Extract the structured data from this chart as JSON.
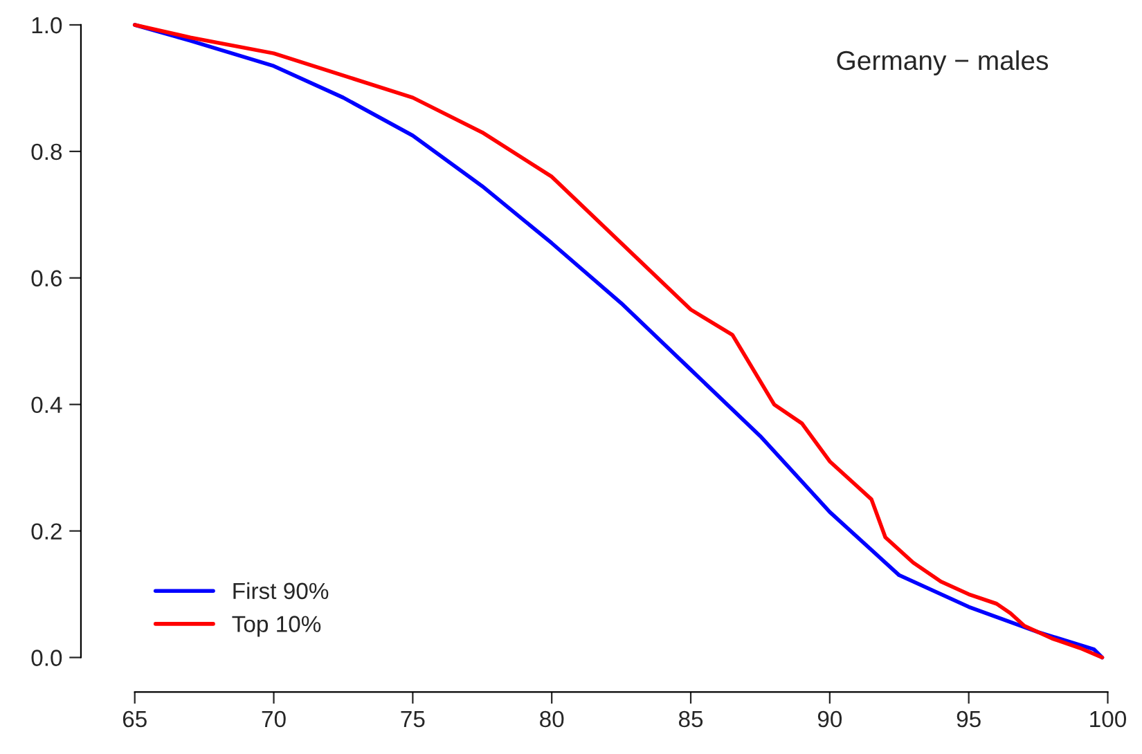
{
  "chart_data": {
    "type": "line",
    "annotations": [
      "Germany − males"
    ],
    "xlim": [
      65,
      100
    ],
    "ylim": [
      0,
      1
    ],
    "xticks": [
      65,
      70,
      75,
      80,
      85,
      90,
      95,
      100
    ],
    "yticks": [
      {
        "value": 0,
        "label": "0.0"
      },
      {
        "value": 0.2,
        "label": "0.2"
      },
      {
        "value": 0.4,
        "label": "0.4"
      },
      {
        "value": 0.6,
        "label": "0.6"
      },
      {
        "value": 0.8,
        "label": "0.8"
      },
      {
        "value": 1,
        "label": "1.0"
      }
    ],
    "grid": false,
    "legend": "bottom left",
    "line_style": "solid",
    "marker": "none",
    "series": [
      {
        "name": "First 90%",
        "color": "#0000ff",
        "x": [
          65,
          67,
          70,
          72.5,
          75,
          77.5,
          80,
          82.5,
          85,
          87.5,
          90,
          92.5,
          95,
          97.5,
          99.5,
          99.8
        ],
        "values": [
          1.0,
          0.975,
          0.935,
          0.885,
          0.825,
          0.745,
          0.655,
          0.56,
          0.455,
          0.35,
          0.23,
          0.13,
          0.08,
          0.04,
          0.013,
          0.0
        ]
      },
      {
        "name": "Top 10%",
        "color": "#ff0000",
        "x": [
          65,
          67,
          70,
          72.5,
          75,
          77.5,
          80,
          82.5,
          85,
          86.5,
          88,
          89,
          90,
          91,
          91.5,
          92,
          93,
          94,
          95,
          96,
          96.5,
          97,
          98,
          99,
          99.8
        ],
        "values": [
          1.0,
          0.98,
          0.955,
          0.92,
          0.885,
          0.83,
          0.76,
          0.655,
          0.55,
          0.51,
          0.4,
          0.37,
          0.31,
          0.27,
          0.25,
          0.19,
          0.15,
          0.12,
          0.1,
          0.085,
          0.07,
          0.05,
          0.03,
          0.015,
          0.0
        ]
      }
    ]
  }
}
